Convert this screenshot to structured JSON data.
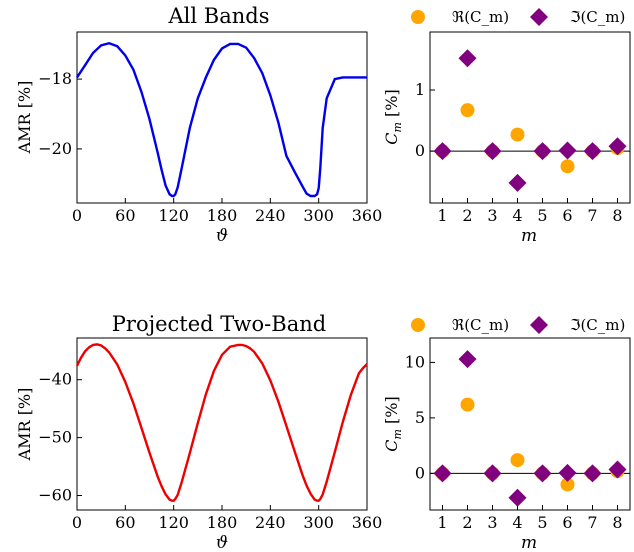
{
  "chart_data": [
    {
      "type": "line",
      "title": "All Bands",
      "xlabel": "ϑ",
      "ylabel": "AMR [%]",
      "xlim": [
        0,
        360
      ],
      "ylim": [
        -21.55,
        -16.65
      ],
      "xticks": [
        0,
        60,
        120,
        180,
        240,
        300,
        360
      ],
      "yticks": [
        -18,
        -20
      ],
      "color": "#0000ee",
      "x": [
        0,
        10,
        20,
        30,
        40,
        50,
        60,
        70,
        80,
        90,
        100,
        105,
        110,
        115,
        118,
        120,
        122,
        125,
        130,
        140,
        150,
        160,
        170,
        180,
        190,
        200,
        210,
        220,
        230,
        240,
        250,
        260,
        270,
        280,
        285,
        290,
        295,
        298,
        300,
        302,
        305,
        310,
        320,
        330,
        340,
        350,
        360
      ],
      "y": [
        -17.95,
        -17.6,
        -17.25,
        -17.03,
        -16.97,
        -17.06,
        -17.32,
        -17.73,
        -18.36,
        -19.15,
        -20.1,
        -20.6,
        -21.05,
        -21.3,
        -21.35,
        -21.35,
        -21.3,
        -21.1,
        -20.55,
        -19.4,
        -18.55,
        -17.95,
        -17.45,
        -17.12,
        -16.99,
        -16.99,
        -17.1,
        -17.4,
        -17.83,
        -18.46,
        -19.25,
        -20.2,
        -20.65,
        -21.08,
        -21.28,
        -21.35,
        -21.35,
        -21.3,
        -21.12,
        -20.55,
        -19.4,
        -18.55,
        -18.0,
        -17.95,
        -17.95,
        -17.95,
        -17.95
      ]
    },
    {
      "type": "scatter",
      "xlabel": "m",
      "ylabel": "C_m [%]",
      "xlim": [
        0.5,
        8.5
      ],
      "ylim": [
        -0.85,
        1.95
      ],
      "xticks": [
        1,
        2,
        3,
        4,
        5,
        6,
        7,
        8
      ],
      "yticks": [
        0,
        1
      ],
      "legend": {
        "position": "top",
        "re_label": "ℜ(C_m)",
        "im_label": "ℑ(C_m)"
      },
      "colors": {
        "re": "#ffa500",
        "im": "#800080"
      },
      "series": [
        {
          "name": "ℜ(C_m)",
          "marker": "circle",
          "x": [
            1,
            2,
            3,
            4,
            5,
            6,
            7,
            8
          ],
          "values": [
            0.0,
            0.67,
            0.0,
            0.27,
            0.0,
            -0.25,
            0.0,
            0.05
          ]
        },
        {
          "name": "ℑ(C_m)",
          "marker": "diamond",
          "x": [
            1,
            2,
            3,
            4,
            5,
            6,
            7,
            8
          ],
          "values": [
            0.0,
            1.52,
            0.0,
            -0.52,
            0.0,
            0.01,
            0.0,
            0.08
          ]
        }
      ]
    },
    {
      "type": "line",
      "title": "Projected Two-Band",
      "xlabel": "ϑ",
      "ylabel": "AMR [%]",
      "xlim": [
        0,
        360
      ],
      "ylim": [
        -62.5,
        -32.8
      ],
      "xticks": [
        0,
        60,
        120,
        180,
        240,
        300,
        360
      ],
      "yticks": [
        -40,
        -50,
        -60
      ],
      "color": "#ee0000",
      "x": [
        0,
        5,
        10,
        15,
        20,
        25,
        30,
        35,
        40,
        50,
        60,
        70,
        80,
        90,
        100,
        105,
        110,
        115,
        118,
        120,
        122,
        125,
        130,
        140,
        150,
        160,
        170,
        180,
        190,
        200,
        205,
        210,
        215,
        220,
        230,
        240,
        250,
        260,
        270,
        280,
        285,
        290,
        295,
        298,
        300,
        302,
        305,
        310,
        320,
        330,
        340,
        350,
        355,
        360
      ],
      "y": [
        -37.6,
        -36.2,
        -35.1,
        -34.4,
        -34.0,
        -33.9,
        -34.1,
        -34.6,
        -35.3,
        -37.4,
        -40.4,
        -44.1,
        -48.3,
        -52.6,
        -56.7,
        -58.4,
        -59.8,
        -60.7,
        -60.9,
        -60.9,
        -60.6,
        -59.9,
        -57.7,
        -52.7,
        -47.5,
        -42.5,
        -38.5,
        -35.7,
        -34.3,
        -34.0,
        -34.0,
        -34.2,
        -34.6,
        -35.2,
        -37.2,
        -40.1,
        -43.8,
        -48.0,
        -52.3,
        -56.5,
        -58.3,
        -59.7,
        -60.7,
        -60.9,
        -60.9,
        -60.6,
        -59.8,
        -57.6,
        -52.5,
        -47.3,
        -42.6,
        -38.9,
        -38.0,
        -37.3
      ]
    },
    {
      "type": "scatter",
      "xlabel": "m",
      "ylabel": "C_m [%]",
      "xlim": [
        0.5,
        8.5
      ],
      "ylim": [
        -3.3,
        12.2
      ],
      "xticks": [
        1,
        2,
        3,
        4,
        5,
        6,
        7,
        8
      ],
      "yticks": [
        0,
        5,
        10
      ],
      "legend": {
        "position": "top",
        "re_label": "ℜ(C_m)",
        "im_label": "ℑ(C_m)"
      },
      "colors": {
        "re": "#ffa500",
        "im": "#800080"
      },
      "series": [
        {
          "name": "ℜ(C_m)",
          "marker": "circle",
          "x": [
            1,
            2,
            3,
            4,
            5,
            6,
            7,
            8
          ],
          "values": [
            0.0,
            6.2,
            0.0,
            1.2,
            0.0,
            -1.0,
            0.0,
            0.2
          ]
        },
        {
          "name": "ℑ(C_m)",
          "marker": "diamond",
          "x": [
            1,
            2,
            3,
            4,
            5,
            6,
            7,
            8
          ],
          "values": [
            0.0,
            10.3,
            0.0,
            -2.2,
            0.0,
            0.05,
            0.0,
            0.35
          ]
        }
      ]
    }
  ]
}
